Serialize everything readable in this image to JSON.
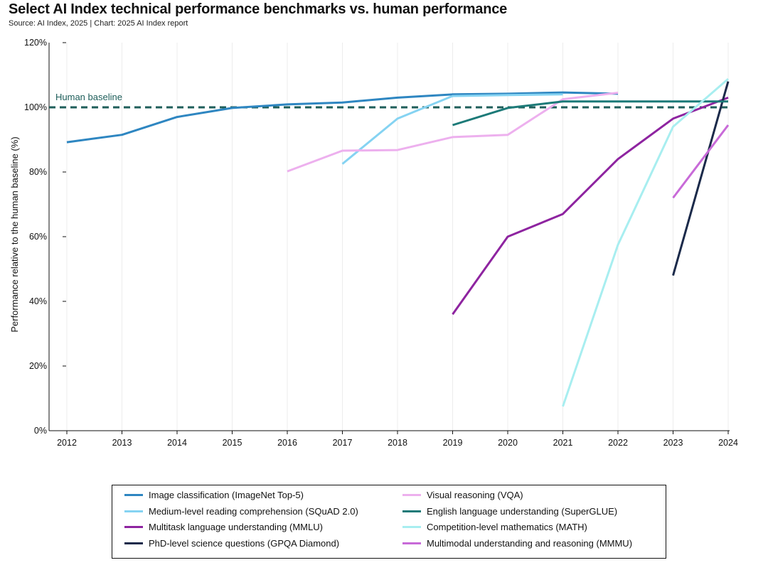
{
  "header": {
    "title": "Select AI Index technical performance benchmarks vs. human performance",
    "subtitle": "Source: AI Index, 2025 | Chart: 2025 AI Index report"
  },
  "chart_data": {
    "type": "line",
    "title": "Select AI Index technical performance benchmarks vs. human performance",
    "ylabel": "Performance relative to the human baseline (%)",
    "xlabel": "",
    "xlim": [
      2012,
      2024
    ],
    "ylim": [
      0,
      120
    ],
    "x_ticks": [
      "2012",
      "2013",
      "2014",
      "2015",
      "2016",
      "2017",
      "2018",
      "2019",
      "2020",
      "2021",
      "2022",
      "2023",
      "2024"
    ],
    "y_ticks": [
      "0%",
      "20%",
      "40%",
      "60%",
      "80%",
      "100%",
      "120%"
    ],
    "baseline": {
      "label": "Human baseline",
      "value": 100,
      "color": "#1e5e5a"
    },
    "grid": "vertical",
    "legend_position": "bottom",
    "series": [
      {
        "name": "Image classification (ImageNet Top-5)",
        "color": "#2e86c1",
        "x": [
          2012,
          2013,
          2014,
          2015,
          2016,
          2017,
          2018,
          2019,
          2020,
          2021,
          2022
        ],
        "y": [
          89.2,
          91.5,
          97.0,
          99.8,
          100.9,
          101.5,
          103.0,
          104.0,
          104.2,
          104.6,
          104.2
        ]
      },
      {
        "name": "Medium-level reading comprehension (SQuAD 2.0)",
        "color": "#85d3f2",
        "x": [
          2017,
          2018,
          2019,
          2020,
          2021
        ],
        "y": [
          82.5,
          96.5,
          103.5,
          103.8,
          104.0
        ]
      },
      {
        "name": "Multitask language understanding (MMLU)",
        "color": "#8e24a0",
        "x": [
          2019,
          2020,
          2021,
          2022,
          2023,
          2024
        ],
        "y": [
          36.0,
          60.0,
          67.0,
          84.0,
          96.5,
          103.0
        ]
      },
      {
        "name": "PhD-level science questions (GPQA Diamond)",
        "color": "#1b2a4a",
        "x": [
          2023,
          2024
        ],
        "y": [
          48.0,
          108.0
        ]
      },
      {
        "name": "Visual reasoning (VQA)",
        "color": "#edb0ee",
        "x": [
          2016,
          2017,
          2018,
          2019,
          2020,
          2021,
          2022
        ],
        "y": [
          80.2,
          86.6,
          86.8,
          90.8,
          91.5,
          102.5,
          104.5
        ]
      },
      {
        "name": "English language understanding (SuperGLUE)",
        "color": "#1c7a78",
        "x": [
          2019,
          2020,
          2021,
          2022,
          2023,
          2024
        ],
        "y": [
          94.5,
          99.8,
          101.8,
          101.8,
          101.8,
          101.8
        ]
      },
      {
        "name": "Competition-level mathematics (MATH)",
        "color": "#a8eef0",
        "x": [
          2021,
          2022,
          2023,
          2024
        ],
        "y": [
          7.5,
          57.5,
          94.0,
          108.8
        ]
      },
      {
        "name": "Multimodal understanding and reasoning (MMMU)",
        "color": "#c86ad8",
        "x": [
          2023,
          2024
        ],
        "y": [
          72.0,
          94.5
        ]
      }
    ]
  }
}
